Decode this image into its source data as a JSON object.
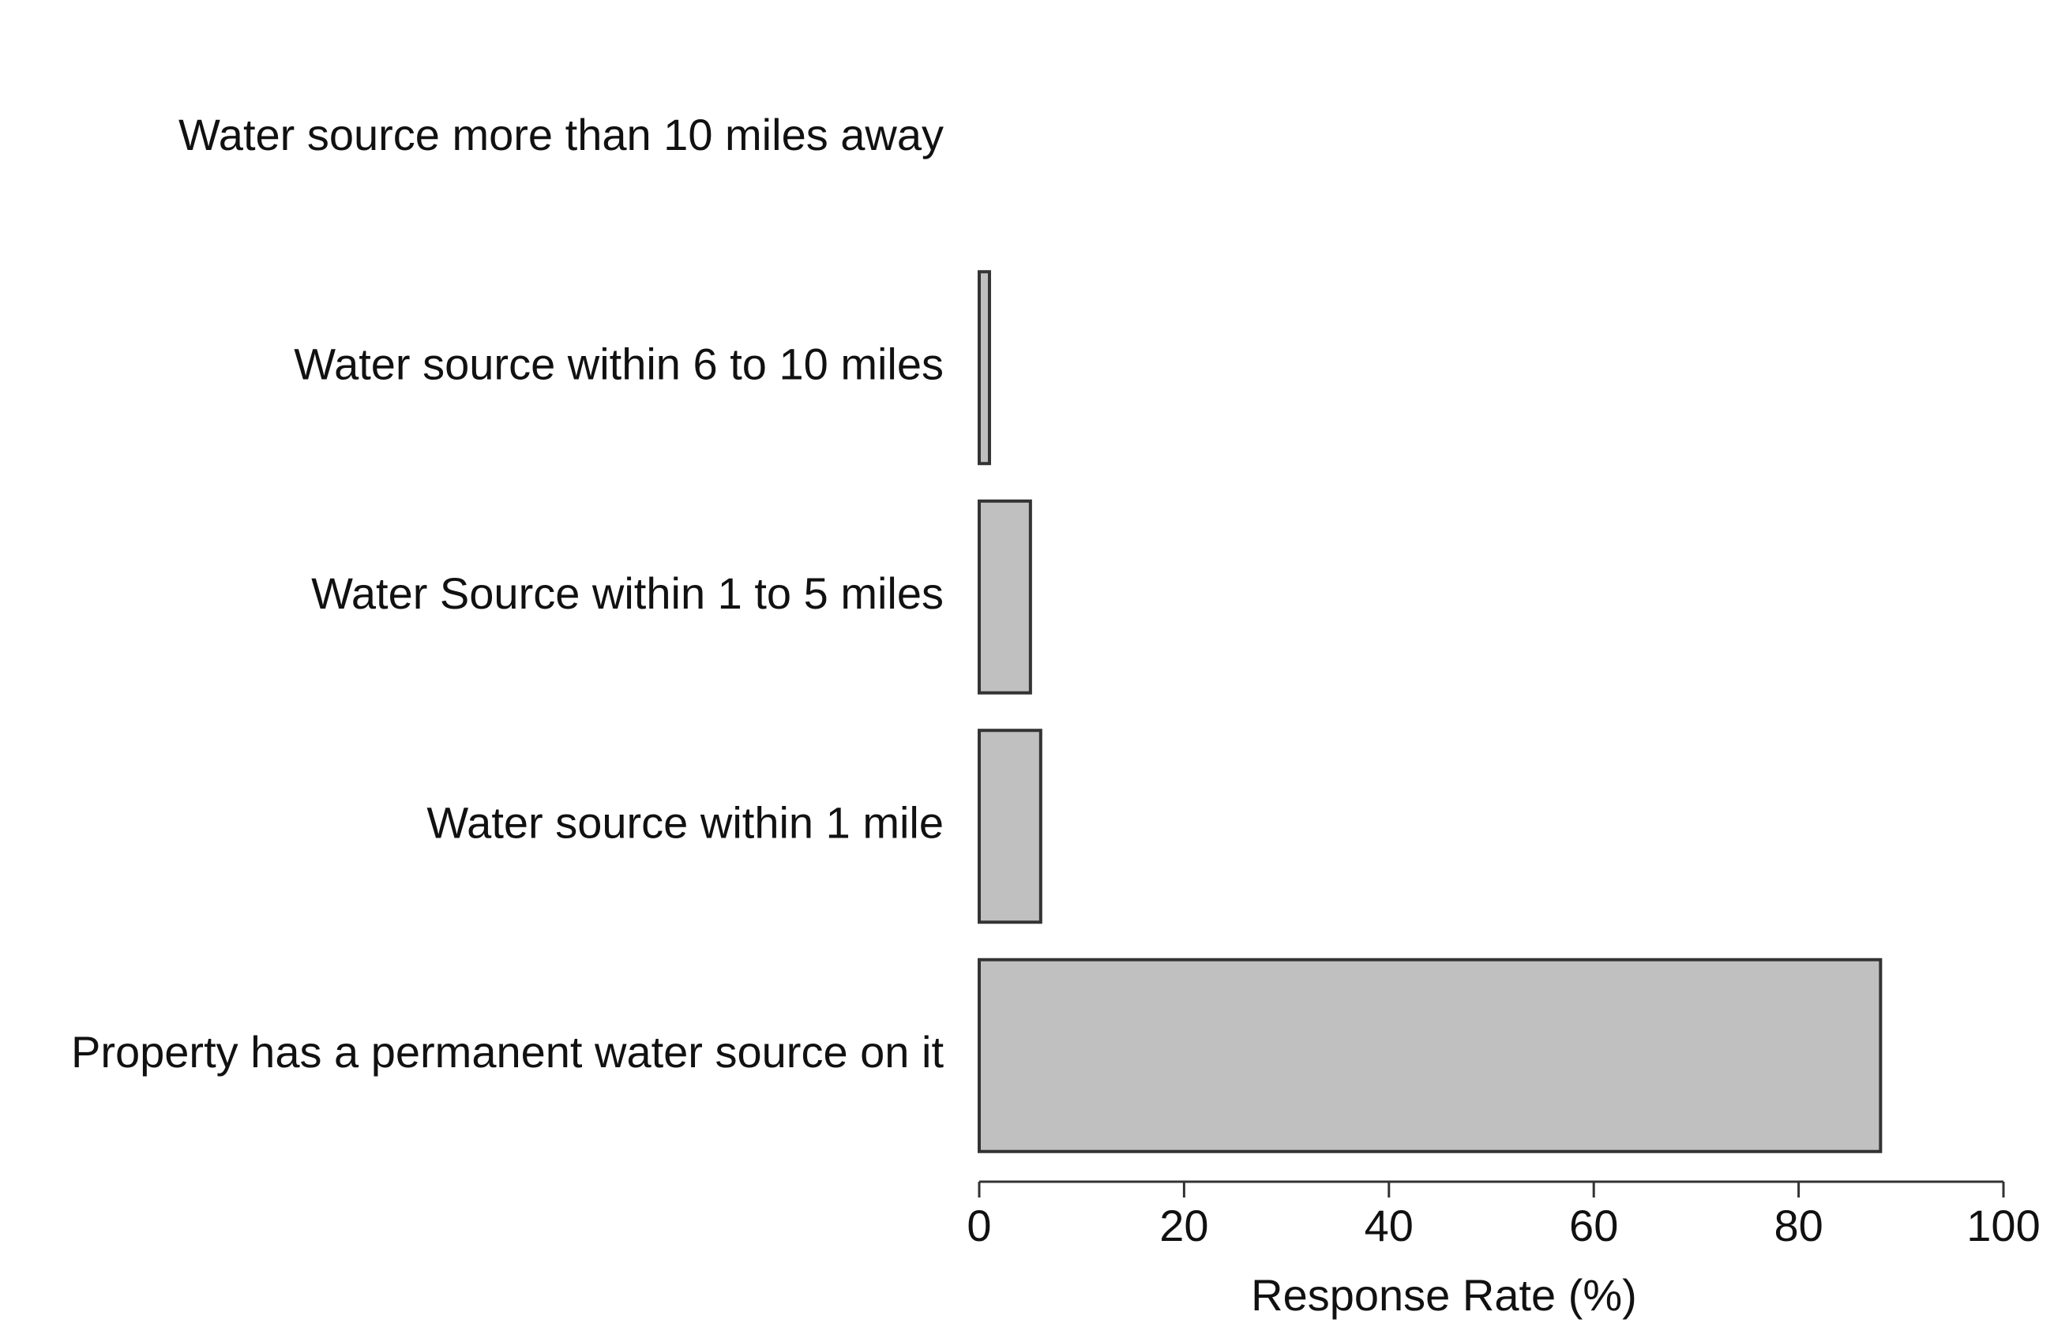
{
  "chart_data": {
    "type": "bar",
    "orientation": "horizontal",
    "categories": [
      "Water source more than 10 miles away",
      "Water source within 6 to 10 miles",
      "Water Source within 1 to 5 miles",
      "Water source within 1 mile",
      "Property has a permanent water source on it"
    ],
    "values": [
      0,
      1,
      5,
      6,
      88
    ],
    "xlabel": "Response Rate (%)",
    "ylabel": "",
    "xlim": [
      0,
      100
    ],
    "xticks": [
      0,
      20,
      40,
      60,
      80,
      100
    ],
    "grid": false,
    "legend": "none",
    "colors": {
      "bar_fill": "#c0c0c0",
      "bar_stroke": "#333333",
      "text": "#111111"
    }
  }
}
